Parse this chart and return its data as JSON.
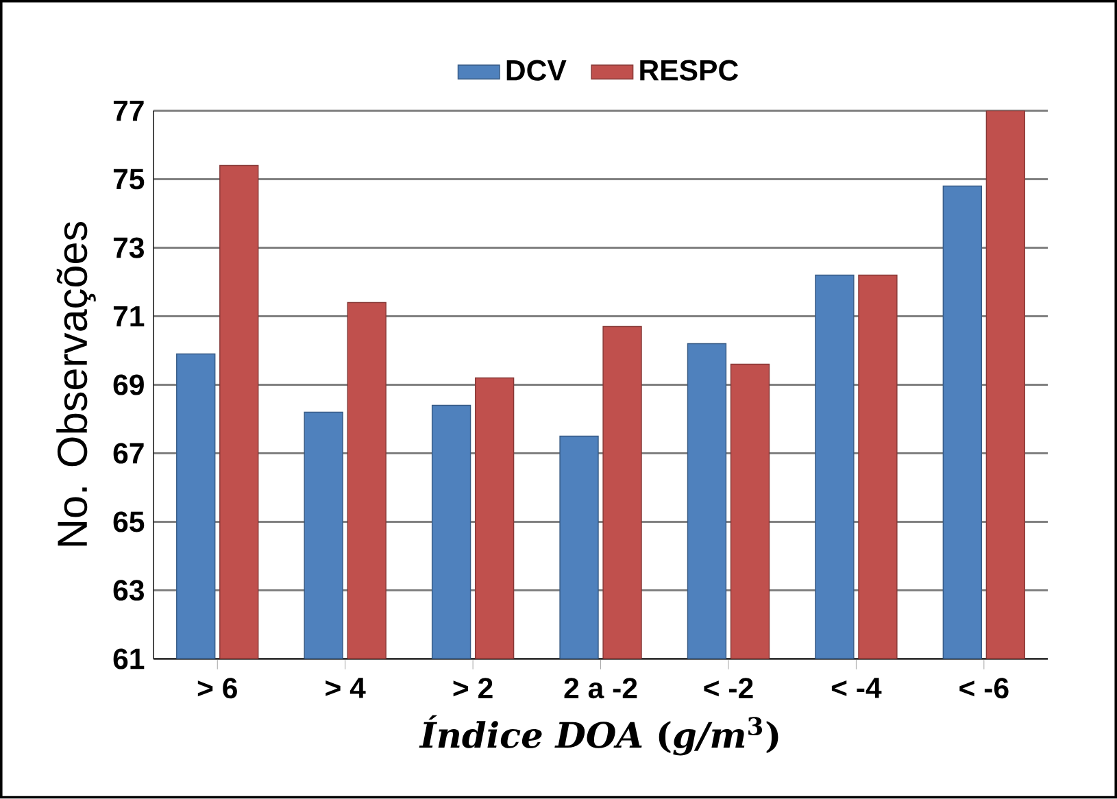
{
  "chart_data": {
    "type": "bar",
    "xlabel": "*Índice DOA* (*g/m*$^{3}$)",
    "ylabel": "No. Observações",
    "categories": [
      "> 6",
      "> 4",
      "> 2",
      "2 a -2",
      "< -2",
      "< -4",
      "< -6"
    ],
    "series": [
      {
        "name": "DCV",
        "color": "#4f81bd",
        "values": [
          69.9,
          68.2,
          68.4,
          67.5,
          70.2,
          72.2,
          74.8
        ]
      },
      {
        "name": "RESPC",
        "color": "#c0504d",
        "values": [
          75.4,
          71.4,
          69.2,
          70.7,
          69.6,
          72.2,
          77.0
        ]
      }
    ],
    "ylim": [
      61,
      77
    ],
    "yticks": [
      61,
      63,
      65,
      67,
      69,
      71,
      73,
      75,
      77
    ],
    "grid": "y",
    "legend": "top"
  }
}
